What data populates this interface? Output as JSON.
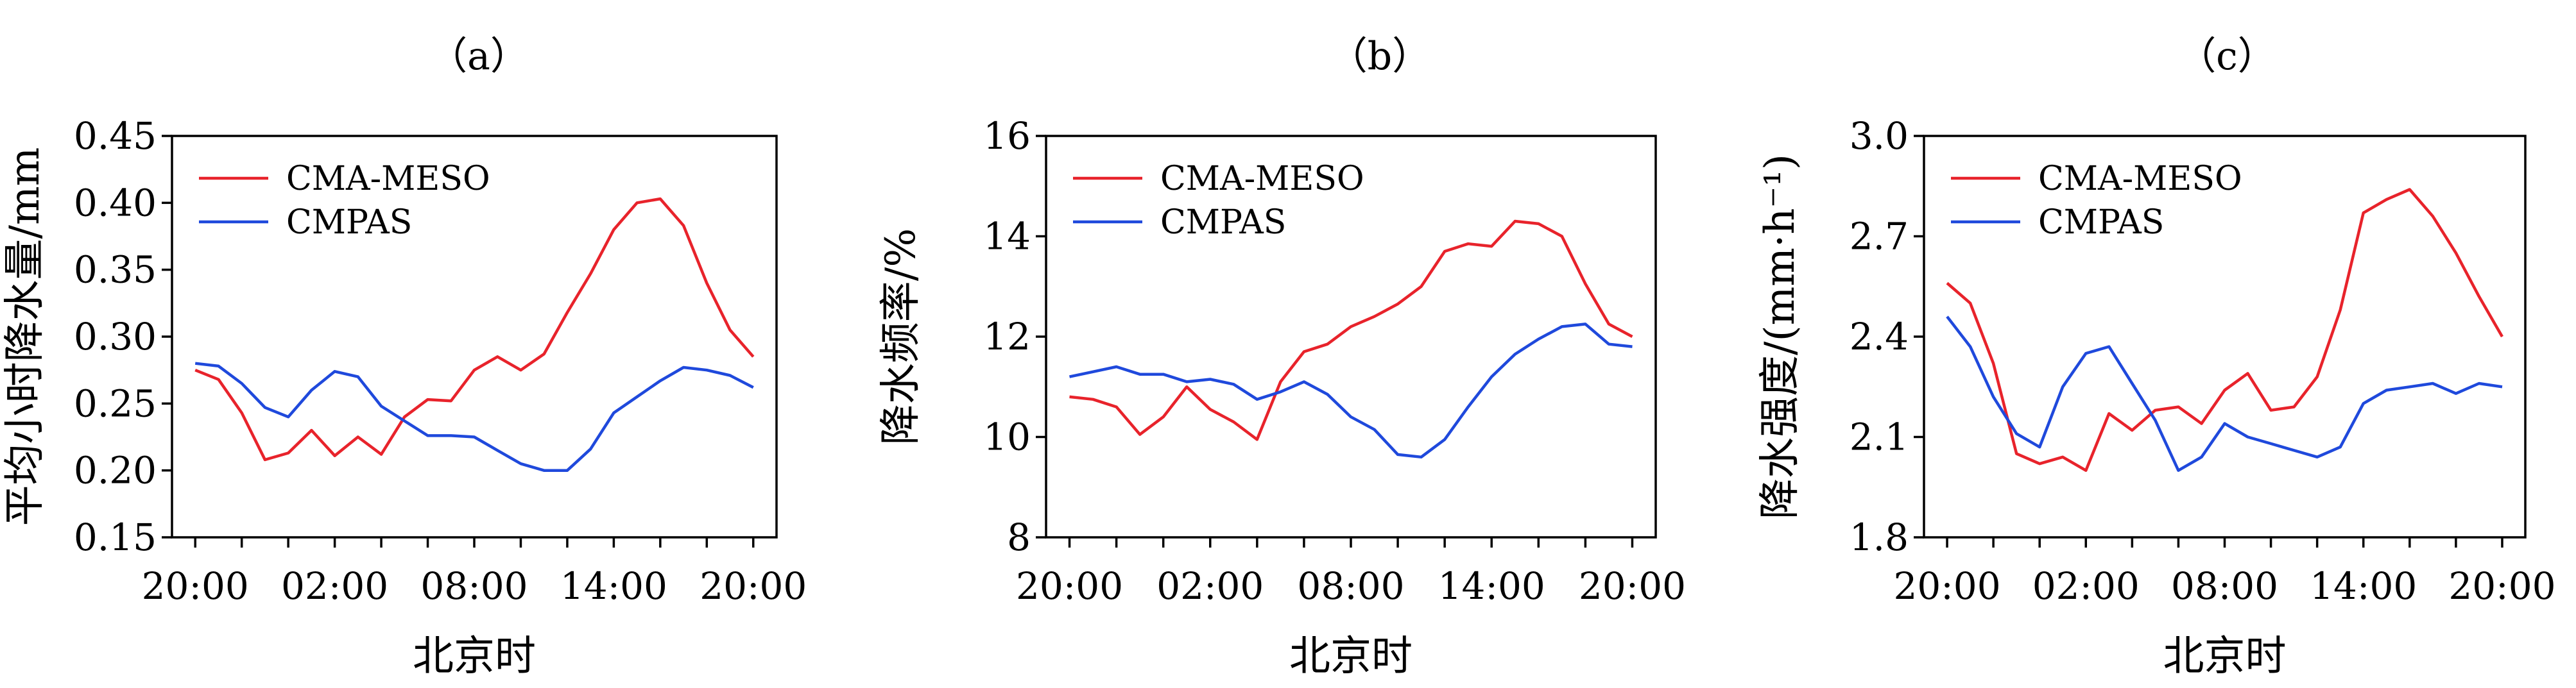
{
  "colors": {
    "meso": "#e8232b",
    "mpas": "#1f49dc",
    "axis": "#000000"
  },
  "chart_data": [
    {
      "type": "line",
      "panel_label": "（a）",
      "xlabel": "北京时",
      "ylabel": "平均小时降水量/mm",
      "x_tick_labels": [
        "20:00",
        "02:00",
        "08:00",
        "14:00",
        "20:00"
      ],
      "x_tick_hours": [
        0,
        6,
        12,
        18,
        24
      ],
      "xlim": [
        -1,
        25
      ],
      "ylim": [
        0.15,
        0.45
      ],
      "y_ticks": [
        0.15,
        0.2,
        0.25,
        0.3,
        0.35,
        0.4,
        0.45
      ],
      "y_tick_labels": [
        "0.15",
        "0.20",
        "0.25",
        "0.30",
        "0.35",
        "0.40",
        "0.45"
      ],
      "legend": "top-left",
      "x": [
        0,
        1,
        2,
        3,
        4,
        5,
        6,
        7,
        8,
        9,
        10,
        11,
        12,
        13,
        14,
        15,
        16,
        17,
        18,
        19,
        20,
        21,
        22,
        23,
        24
      ],
      "series": [
        {
          "name": "CMA-MESO",
          "color_key": "meso",
          "values": [
            0.275,
            0.268,
            0.243,
            0.208,
            0.213,
            0.23,
            0.211,
            0.225,
            0.212,
            0.24,
            0.253,
            0.252,
            0.275,
            0.285,
            0.275,
            0.287,
            0.318,
            0.347,
            0.38,
            0.4,
            0.403,
            0.383,
            0.34,
            0.305,
            0.285
          ]
        },
        {
          "name": "CMPAS",
          "color_key": "mpas",
          "values": [
            0.28,
            0.278,
            0.265,
            0.247,
            0.24,
            0.26,
            0.274,
            0.27,
            0.248,
            0.237,
            0.226,
            0.226,
            0.225,
            0.215,
            0.205,
            0.2,
            0.2,
            0.216,
            0.243,
            0.255,
            0.267,
            0.277,
            0.275,
            0.271,
            0.262
          ]
        }
      ]
    },
    {
      "type": "line",
      "panel_label": "（b）",
      "xlabel": "北京时",
      "ylabel": "降水频率/%",
      "x_tick_labels": [
        "20:00",
        "02:00",
        "08:00",
        "14:00",
        "20:00"
      ],
      "x_tick_hours": [
        0,
        6,
        12,
        18,
        24
      ],
      "xlim": [
        -1,
        25
      ],
      "ylim": [
        8,
        16
      ],
      "y_ticks": [
        8,
        10,
        12,
        14,
        16
      ],
      "y_tick_labels": [
        "8",
        "10",
        "12",
        "14",
        "16"
      ],
      "legend": "top-left",
      "x": [
        0,
        1,
        2,
        3,
        4,
        5,
        6,
        7,
        8,
        9,
        10,
        11,
        12,
        13,
        14,
        15,
        16,
        17,
        18,
        19,
        20,
        21,
        22,
        23,
        24
      ],
      "series": [
        {
          "name": "CMA-MESO",
          "color_key": "meso",
          "values": [
            10.8,
            10.75,
            10.6,
            10.05,
            10.4,
            11.0,
            10.55,
            10.3,
            9.95,
            11.1,
            11.7,
            11.85,
            12.2,
            12.4,
            12.65,
            13.0,
            13.7,
            13.85,
            13.8,
            14.3,
            14.25,
            14.0,
            13.05,
            12.25,
            12.0
          ]
        },
        {
          "name": "CMPAS",
          "color_key": "mpas",
          "values": [
            11.2,
            11.3,
            11.4,
            11.25,
            11.25,
            11.1,
            11.15,
            11.05,
            10.75,
            10.9,
            11.1,
            10.85,
            10.4,
            10.15,
            9.65,
            9.6,
            9.95,
            10.6,
            11.2,
            11.65,
            11.95,
            12.2,
            12.25,
            11.85,
            11.8
          ]
        }
      ]
    },
    {
      "type": "line",
      "panel_label": "（c）",
      "xlabel": "北京时",
      "ylabel": "降水强度/(mm·h⁻¹)",
      "x_tick_labels": [
        "20:00",
        "02:00",
        "08:00",
        "14:00",
        "20:00"
      ],
      "x_tick_hours": [
        0,
        6,
        12,
        18,
        24
      ],
      "xlim": [
        -1,
        25
      ],
      "ylim": [
        1.8,
        3.0
      ],
      "y_ticks": [
        1.8,
        2.1,
        2.4,
        2.7,
        3.0
      ],
      "y_tick_labels": [
        "1.8",
        "2.1",
        "2.4",
        "2.7",
        "3.0"
      ],
      "legend": "top-left",
      "x": [
        0,
        1,
        2,
        3,
        4,
        5,
        6,
        7,
        8,
        9,
        10,
        11,
        12,
        13,
        14,
        15,
        16,
        17,
        18,
        19,
        20,
        21,
        22,
        23,
        24
      ],
      "series": [
        {
          "name": "CMA-MESO",
          "color_key": "meso",
          "values": [
            2.56,
            2.5,
            2.32,
            2.05,
            2.02,
            2.04,
            2.0,
            2.17,
            2.12,
            2.18,
            2.19,
            2.14,
            2.24,
            2.29,
            2.18,
            2.19,
            2.28,
            2.48,
            2.77,
            2.81,
            2.84,
            2.76,
            2.65,
            2.52,
            2.4
          ]
        },
        {
          "name": "CMPAS",
          "color_key": "mpas",
          "values": [
            2.46,
            2.37,
            2.22,
            2.11,
            2.07,
            2.25,
            2.35,
            2.37,
            2.26,
            2.15,
            2.0,
            2.04,
            2.14,
            2.1,
            2.08,
            2.06,
            2.04,
            2.07,
            2.2,
            2.24,
            2.25,
            2.26,
            2.23,
            2.26,
            2.25
          ]
        }
      ]
    }
  ]
}
